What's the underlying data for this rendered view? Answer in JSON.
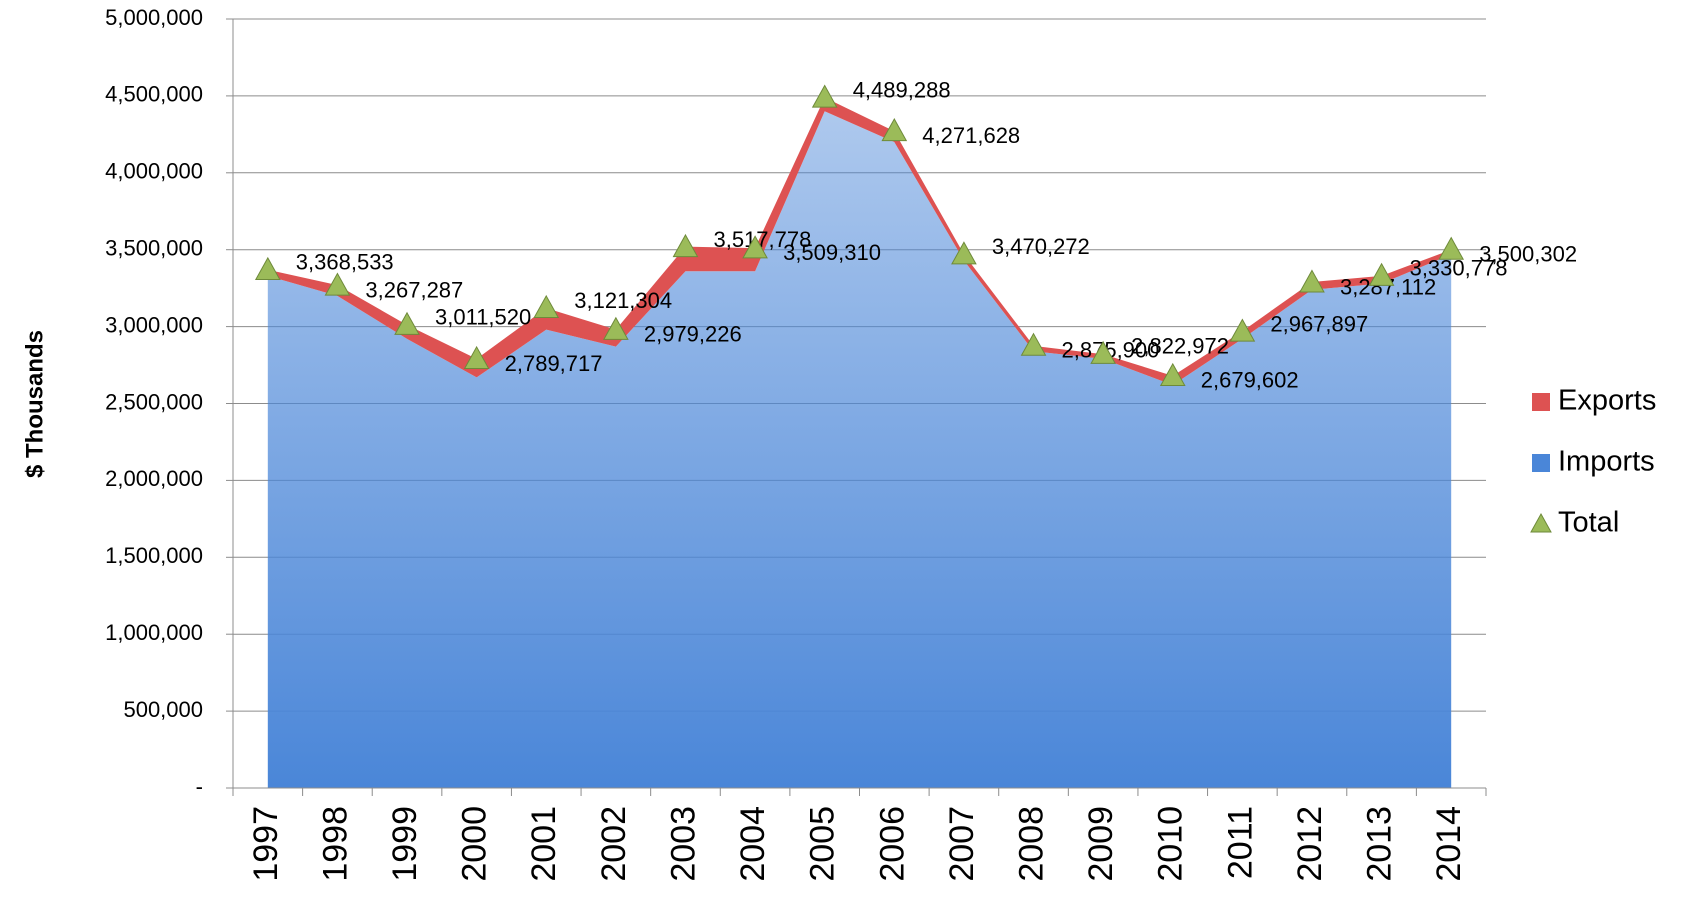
{
  "chart_data": {
    "type": "stacked_area",
    "y_label": "$ Thousands",
    "categories": [
      "1997",
      "1998",
      "1999",
      "2000",
      "2001",
      "2002",
      "2003",
      "2004",
      "2005",
      "2006",
      "2007",
      "2008",
      "2009",
      "2010",
      "2011",
      "2012",
      "2013",
      "2014"
    ],
    "series": [
      {
        "name": "Imports",
        "color": "#4a86d8",
        "kind": "area",
        "values": [
          3330000,
          3200000,
          2920000,
          2670000,
          2980000,
          2870000,
          3360000,
          3360000,
          4400000,
          4200000,
          3430000,
          2840000,
          2790000,
          2620000,
          2920000,
          3240000,
          3280000,
          3470000
        ]
      },
      {
        "name": "Exports",
        "color": "#dd5252",
        "kind": "area",
        "values": [
          40000,
          70000,
          90000,
          120000,
          140000,
          110000,
          160000,
          150000,
          90000,
          70000,
          40000,
          35000,
          30000,
          60000,
          50000,
          50000,
          50000,
          30000
        ]
      },
      {
        "name": "Total",
        "color": "#9bbb59",
        "kind": "marker",
        "values": [
          3368533,
          3267287,
          3011520,
          2789717,
          3121304,
          2979226,
          3517778,
          3509310,
          4489288,
          4271628,
          3470272,
          2875900,
          2822972,
          2679602,
          2967897,
          3287112,
          3330778,
          3500302
        ],
        "value_labels": [
          "3,368,533",
          "3,267,287",
          "3,011,520",
          "2,789,717",
          "3,121,304",
          "2,979,226",
          "3,517,778",
          "3,509,310",
          "4,489,288",
          "4,271,628",
          "3,470,272",
          "2,875,900",
          "2,822,972",
          "2,679,602",
          "2,967,897",
          "3,287,112",
          "3,330,778",
          "3,500,302"
        ]
      }
    ],
    "ylim": [
      0,
      5000000
    ],
    "yticks": [
      {
        "value": 0,
        "label": "-"
      },
      {
        "value": 500000,
        "label": "500,000"
      },
      {
        "value": 1000000,
        "label": "1,000,000"
      },
      {
        "value": 1500000,
        "label": "1,500,000"
      },
      {
        "value": 2000000,
        "label": "2,000,000"
      },
      {
        "value": 2500000,
        "label": "2,500,000"
      },
      {
        "value": 3000000,
        "label": "3,000,000"
      },
      {
        "value": 3500000,
        "label": "3,500,000"
      },
      {
        "value": 4000000,
        "label": "4,000,000"
      },
      {
        "value": 4500000,
        "label": "4,500,000"
      },
      {
        "value": 5000000,
        "label": "5,000,000"
      }
    ],
    "grid": true,
    "legend": "right"
  }
}
